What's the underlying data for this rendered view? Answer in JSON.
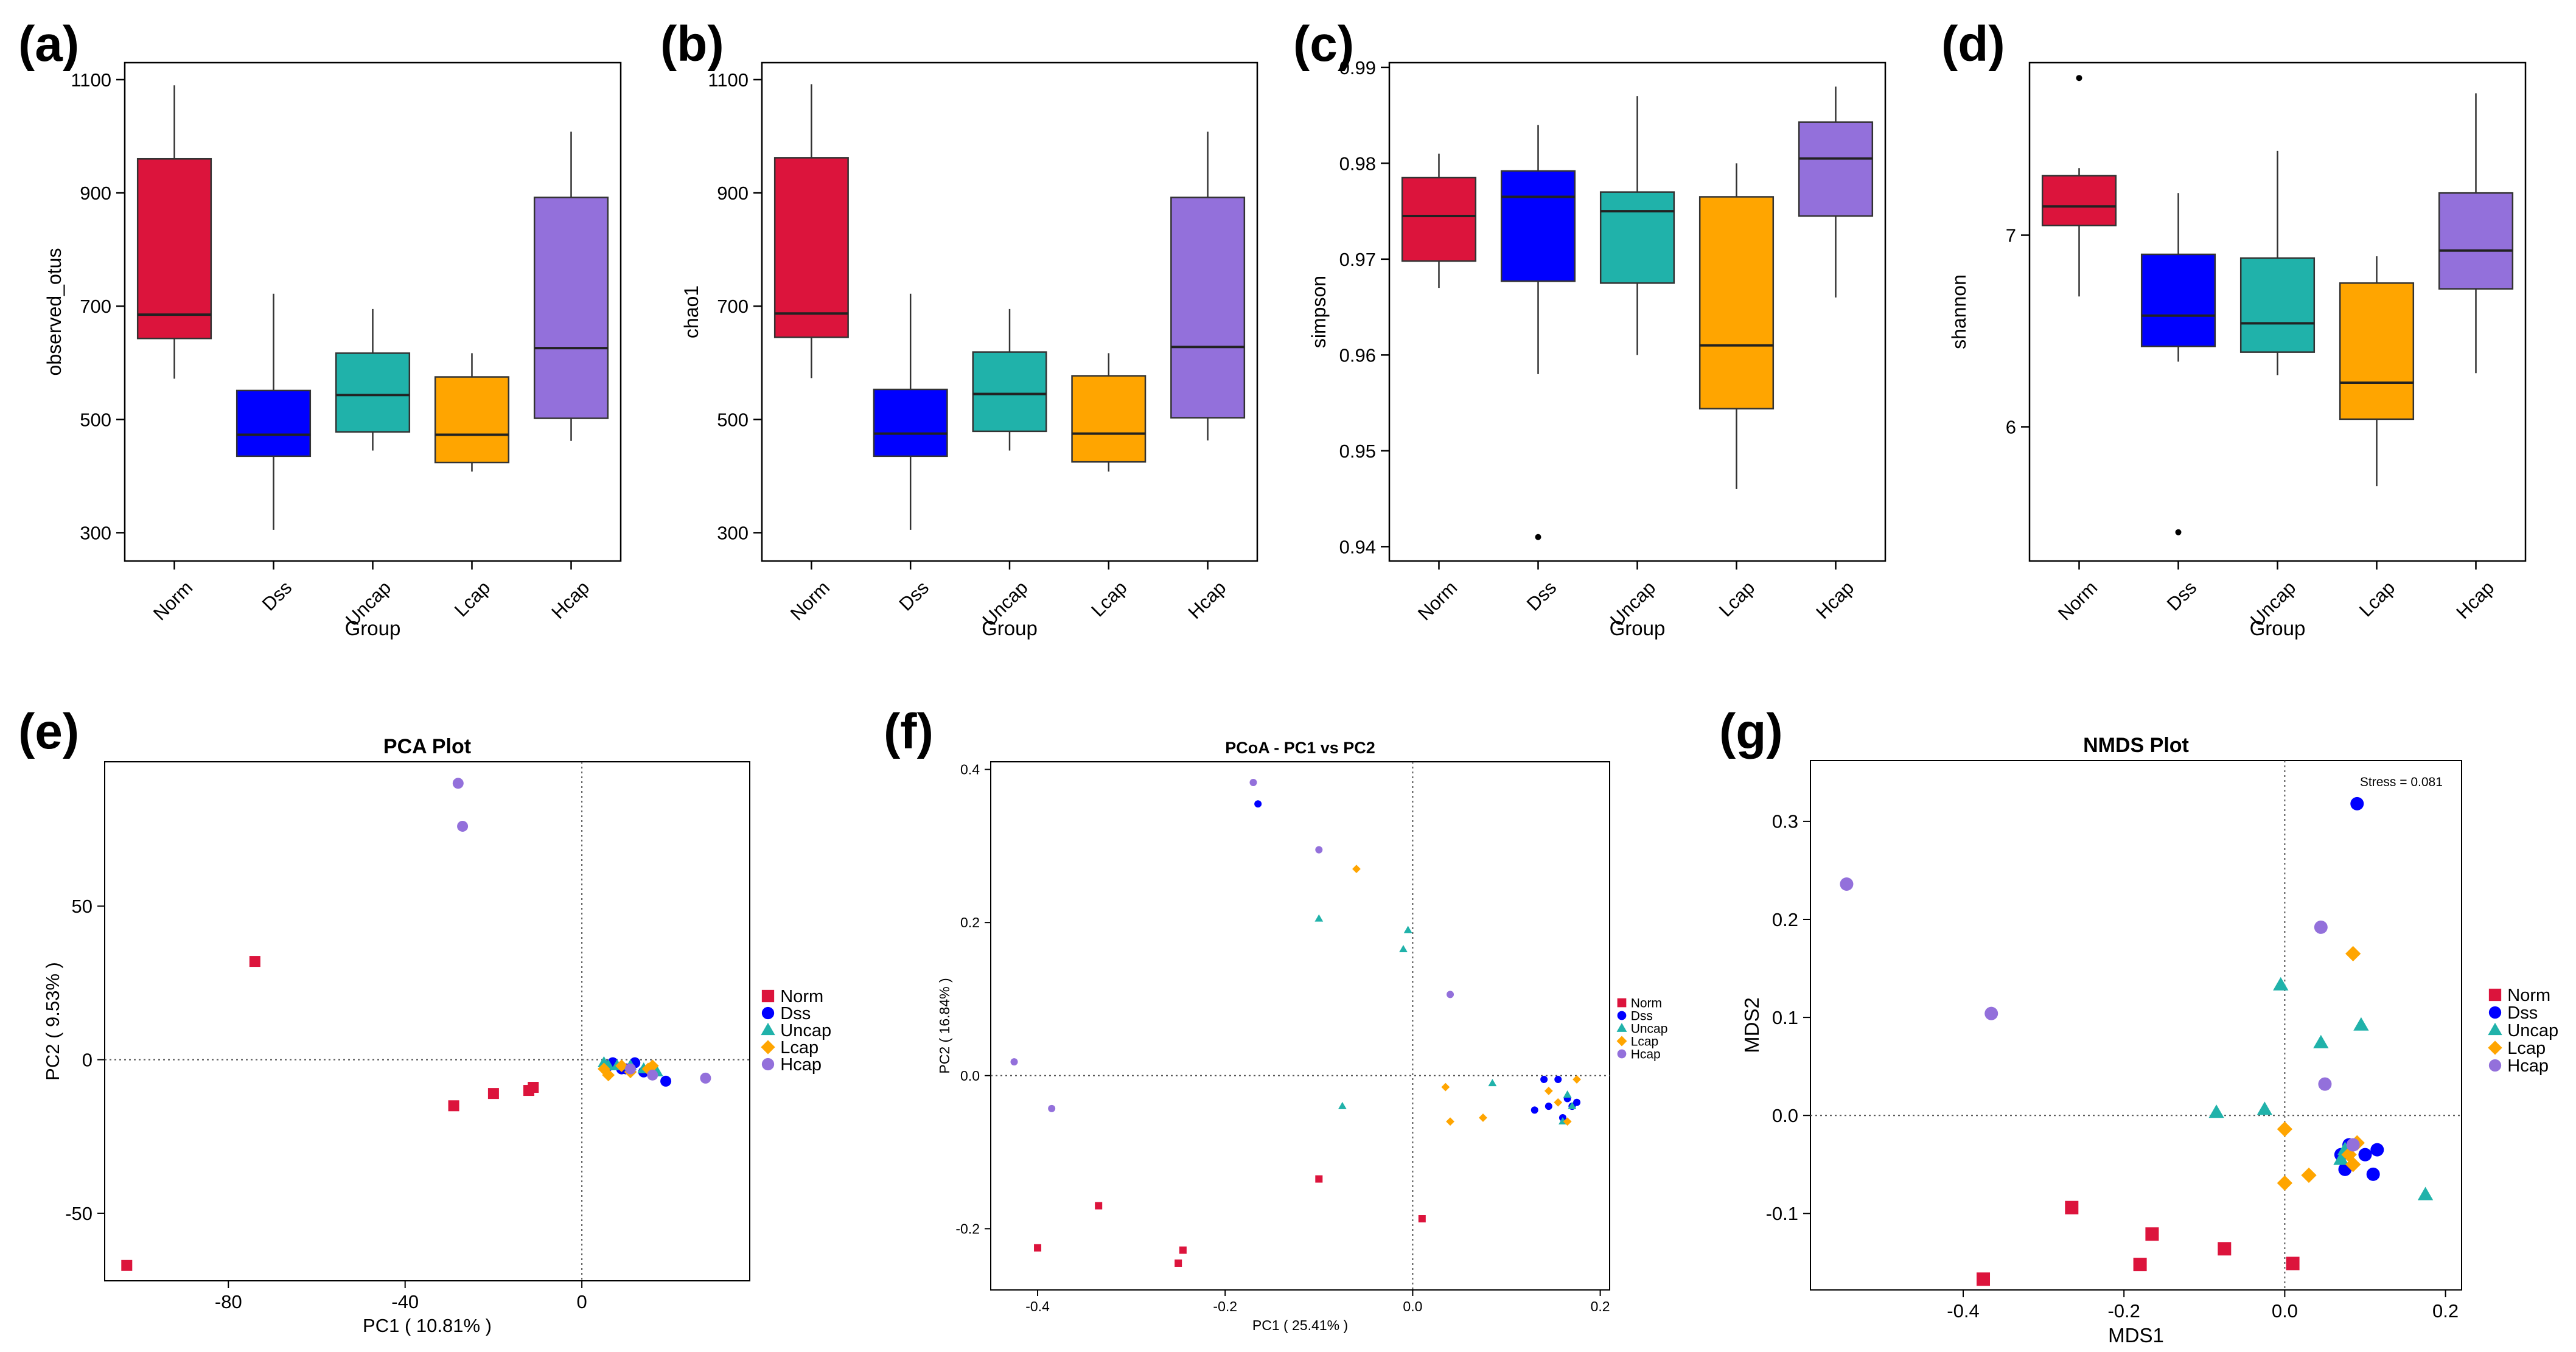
{
  "colors": {
    "Norm": "#DC143C",
    "Dss": "#0000FF",
    "Uncap": "#20B2AA",
    "Lcap": "#FFA500",
    "Hcap": "#9370DB"
  },
  "shapes": {
    "Norm": "square",
    "Dss": "circle",
    "Uncap": "triangle",
    "Lcap": "diamond",
    "Hcap": "circle"
  },
  "chart_data": [
    {
      "panel": "(a)",
      "type": "box",
      "categories": [
        "Norm",
        "Dss",
        "Uncap",
        "Lcap",
        "Hcap"
      ],
      "xlabel": "Group",
      "ylabel": "observed_otus",
      "title": "",
      "ylim": [
        250,
        1130
      ],
      "yticks": [
        300,
        500,
        700,
        900,
        1100
      ],
      "ytick_labels": [
        "300",
        "500",
        "700",
        "900",
        "1100"
      ],
      "boxes": [
        {
          "low": 572,
          "q1": 643,
          "median": 685,
          "q3": 960,
          "high": 1090,
          "outliers": []
        },
        {
          "low": 305,
          "q1": 435,
          "median": 473,
          "q3": 551,
          "high": 722,
          "outliers": []
        },
        {
          "low": 445,
          "q1": 478,
          "median": 543,
          "q3": 617,
          "high": 695,
          "outliers": []
        },
        {
          "low": 408,
          "q1": 424,
          "median": 473,
          "q3": 575,
          "high": 617,
          "outliers": []
        },
        {
          "low": 462,
          "q1": 502,
          "median": 626,
          "q3": 892,
          "high": 1008,
          "outliers": []
        }
      ]
    },
    {
      "panel": "(b)",
      "type": "box",
      "categories": [
        "Norm",
        "Dss",
        "Uncap",
        "Lcap",
        "Hcap"
      ],
      "xlabel": "Group",
      "ylabel": "chao1",
      "title": "",
      "ylim": [
        250,
        1130
      ],
      "yticks": [
        300,
        500,
        700,
        900,
        1100
      ],
      "ytick_labels": [
        "300",
        "500",
        "700",
        "900",
        "1100"
      ],
      "boxes": [
        {
          "low": 573,
          "q1": 645,
          "median": 687,
          "q3": 962,
          "high": 1092,
          "outliers": []
        },
        {
          "low": 305,
          "q1": 435,
          "median": 475,
          "q3": 553,
          "high": 722,
          "outliers": []
        },
        {
          "low": 445,
          "q1": 479,
          "median": 545,
          "q3": 619,
          "high": 695,
          "outliers": []
        },
        {
          "low": 408,
          "q1": 425,
          "median": 475,
          "q3": 577,
          "high": 617,
          "outliers": []
        },
        {
          "low": 463,
          "q1": 503,
          "median": 628,
          "q3": 892,
          "high": 1008,
          "outliers": []
        }
      ]
    },
    {
      "panel": "(c)",
      "type": "box",
      "categories": [
        "Norm",
        "Dss",
        "Uncap",
        "Lcap",
        "Hcap"
      ],
      "xlabel": "Group",
      "ylabel": "simpson",
      "title": "",
      "ylim": [
        0.9385,
        0.9905
      ],
      "yticks": [
        0.94,
        0.95,
        0.96,
        0.97,
        0.98,
        0.99
      ],
      "ytick_labels": [
        "0.94",
        "0.95",
        "0.96",
        "0.97",
        "0.98",
        "0.99"
      ],
      "boxes": [
        {
          "low": 0.967,
          "q1": 0.9698,
          "median": 0.9745,
          "q3": 0.9785,
          "high": 0.981,
          "outliers": []
        },
        {
          "low": 0.958,
          "q1": 0.9677,
          "median": 0.9765,
          "q3": 0.9792,
          "high": 0.984,
          "outliers": [
            0.941
          ]
        },
        {
          "low": 0.96,
          "q1": 0.9675,
          "median": 0.975,
          "q3": 0.977,
          "high": 0.987,
          "outliers": []
        },
        {
          "low": 0.946,
          "q1": 0.9544,
          "median": 0.961,
          "q3": 0.9765,
          "high": 0.98,
          "outliers": []
        },
        {
          "low": 0.966,
          "q1": 0.9745,
          "median": 0.9805,
          "q3": 0.9843,
          "high": 0.988,
          "outliers": []
        }
      ]
    },
    {
      "panel": "(d)",
      "type": "box",
      "categories": [
        "Norm",
        "Dss",
        "Uncap",
        "Lcap",
        "Hcap"
      ],
      "xlabel": "Group",
      "ylabel": "shannon",
      "title": "",
      "ylim": [
        5.3,
        7.9
      ],
      "yticks": [
        6,
        7
      ],
      "ytick_labels": [
        "6",
        "7"
      ],
      "boxes": [
        {
          "low": 6.68,
          "q1": 7.05,
          "median": 7.15,
          "q3": 7.31,
          "high": 7.35,
          "outliers": [
            7.82
          ]
        },
        {
          "low": 6.34,
          "q1": 6.42,
          "median": 6.58,
          "q3": 6.9,
          "high": 7.22,
          "outliers": [
            5.45
          ]
        },
        {
          "low": 6.27,
          "q1": 6.39,
          "median": 6.54,
          "q3": 6.88,
          "high": 7.44,
          "outliers": []
        },
        {
          "low": 5.69,
          "q1": 6.04,
          "median": 6.23,
          "q3": 6.75,
          "high": 6.89,
          "outliers": []
        },
        {
          "low": 6.28,
          "q1": 6.72,
          "median": 6.92,
          "q3": 7.22,
          "high": 7.74,
          "outliers": []
        }
      ]
    },
    {
      "panel": "(e)",
      "type": "scatter",
      "title": "PCA Plot",
      "xlabel": "PC1 ( 10.81% )",
      "ylabel": "PC2 ( 9.53% )",
      "xlim": [
        -108,
        38
      ],
      "ylim": [
        -72,
        97
      ],
      "xticks": [
        -80,
        -40,
        0
      ],
      "xtick_labels": [
        "-80",
        "-40",
        "0"
      ],
      "yticks": [
        -50,
        0,
        50
      ],
      "ytick_labels": [
        "-50",
        "0",
        "50"
      ],
      "legend": [
        "Norm",
        "Dss",
        "Uncap",
        "Lcap",
        "Hcap"
      ],
      "series": [
        {
          "name": "Norm",
          "x": [
            -103,
            -74,
            -29,
            -20,
            -12,
            -11
          ],
          "y": [
            -67,
            32,
            -15,
            -11,
            -10,
            -9
          ]
        },
        {
          "name": "Dss",
          "x": [
            6,
            9,
            12,
            14,
            19,
            7,
            10
          ],
          "y": [
            -2,
            -3,
            -1,
            -4,
            -7,
            -1,
            -3
          ]
        },
        {
          "name": "Uncap",
          "x": [
            5,
            8,
            11,
            14,
            17,
            6
          ],
          "y": [
            -1,
            -2,
            -2,
            -3,
            -4,
            -2
          ]
        },
        {
          "name": "Lcap",
          "x": [
            5,
            6,
            9,
            11,
            15,
            16
          ],
          "y": [
            -3,
            -5,
            -2,
            -4,
            -3,
            -2
          ]
        },
        {
          "name": "Hcap",
          "x": [
            -28,
            -27,
            16,
            28,
            11
          ],
          "y": [
            90,
            76,
            -5,
            -6,
            -3
          ]
        }
      ]
    },
    {
      "panel": "(f)",
      "type": "scatter",
      "title": "PCoA - PC1 vs PC2",
      "xlabel": "PC1 ( 25.41% )",
      "ylabel": "PC2 ( 16.84% )",
      "xlim": [
        -0.45,
        0.21
      ],
      "ylim": [
        -0.28,
        0.41
      ],
      "xticks": [
        -0.4,
        -0.2,
        0.0,
        0.2
      ],
      "xtick_labels": [
        "-0.4",
        "-0.2",
        "0.0",
        "0.2"
      ],
      "yticks": [
        -0.2,
        0.0,
        0.2,
        0.4
      ],
      "ytick_labels": [
        "-0.2",
        "0.0",
        "0.2",
        "0.4"
      ],
      "legend": [
        "Norm",
        "Dss",
        "Uncap",
        "Lcap",
        "Hcap"
      ],
      "series": [
        {
          "name": "Norm",
          "x": [
            -0.4,
            -0.335,
            -0.25,
            -0.245,
            -0.1,
            0.01
          ],
          "y": [
            -0.225,
            -0.17,
            -0.245,
            -0.228,
            -0.135,
            -0.187
          ]
        },
        {
          "name": "Dss",
          "x": [
            -0.165,
            0.14,
            0.145,
            0.155,
            0.16,
            0.165,
            0.17,
            0.175,
            0.13
          ],
          "y": [
            0.355,
            -0.005,
            -0.04,
            -0.005,
            -0.055,
            -0.03,
            -0.04,
            -0.035,
            -0.045
          ]
        },
        {
          "name": "Uncap",
          "x": [
            -0.1,
            -0.075,
            -0.01,
            -0.005,
            0.085,
            0.16,
            0.165,
            0.17
          ],
          "y": [
            0.205,
            -0.04,
            0.165,
            0.19,
            -0.01,
            -0.06,
            -0.025,
            -0.04
          ]
        },
        {
          "name": "Lcap",
          "x": [
            -0.06,
            0.035,
            0.04,
            0.075,
            0.145,
            0.155,
            0.165,
            0.175
          ],
          "y": [
            0.27,
            -0.015,
            -0.06,
            -0.055,
            -0.02,
            -0.035,
            -0.06,
            -0.005
          ]
        },
        {
          "name": "Hcap",
          "x": [
            -0.425,
            -0.385,
            -0.17,
            -0.1,
            0.04
          ],
          "y": [
            0.018,
            -0.043,
            0.383,
            0.295,
            0.106
          ]
        }
      ]
    },
    {
      "panel": "(g)",
      "type": "scatter",
      "title": "NMDS Plot",
      "xlabel": "MDS1",
      "ylabel": "MDS2",
      "annotation": "Stress = 0.081",
      "xlim": [
        -0.59,
        0.22
      ],
      "ylim": [
        -0.178,
        0.362
      ],
      "xticks": [
        -0.4,
        -0.2,
        0.0,
        0.2
      ],
      "xtick_labels": [
        "-0.4",
        "-0.2",
        "0.0",
        "0.2"
      ],
      "yticks": [
        -0.1,
        0.0,
        0.1,
        0.2,
        0.3
      ],
      "ytick_labels": [
        "-0.1",
        "0.0",
        "0.1",
        "0.2",
        "0.3"
      ],
      "legend": [
        "Norm",
        "Dss",
        "Uncap",
        "Lcap",
        "Hcap"
      ],
      "series": [
        {
          "name": "Norm",
          "x": [
            -0.375,
            -0.265,
            -0.18,
            -0.165,
            -0.075,
            0.01
          ],
          "y": [
            -0.167,
            -0.094,
            -0.152,
            -0.121,
            -0.136,
            -0.151
          ]
        },
        {
          "name": "Dss",
          "x": [
            0.09,
            0.07,
            0.075,
            0.1,
            0.11,
            0.115,
            0.08
          ],
          "y": [
            0.318,
            -0.04,
            -0.055,
            -0.04,
            -0.06,
            -0.035,
            -0.03
          ]
        },
        {
          "name": "Uncap",
          "x": [
            -0.085,
            -0.025,
            -0.005,
            0.045,
            0.095,
            0.175,
            0.07,
            0.075
          ],
          "y": [
            0.003,
            0.006,
            0.133,
            0.074,
            0.092,
            -0.081,
            -0.045,
            -0.035
          ]
        },
        {
          "name": "Lcap",
          "x": [
            0.085,
            0.0,
            0.03,
            0.0,
            0.085,
            0.09,
            0.08
          ],
          "y": [
            0.165,
            -0.014,
            -0.061,
            -0.069,
            -0.05,
            -0.028,
            -0.04
          ]
        },
        {
          "name": "Hcap",
          "x": [
            -0.545,
            -0.365,
            0.045,
            0.05,
            0.085
          ],
          "y": [
            0.236,
            0.104,
            0.192,
            0.032,
            -0.03
          ]
        }
      ]
    }
  ]
}
